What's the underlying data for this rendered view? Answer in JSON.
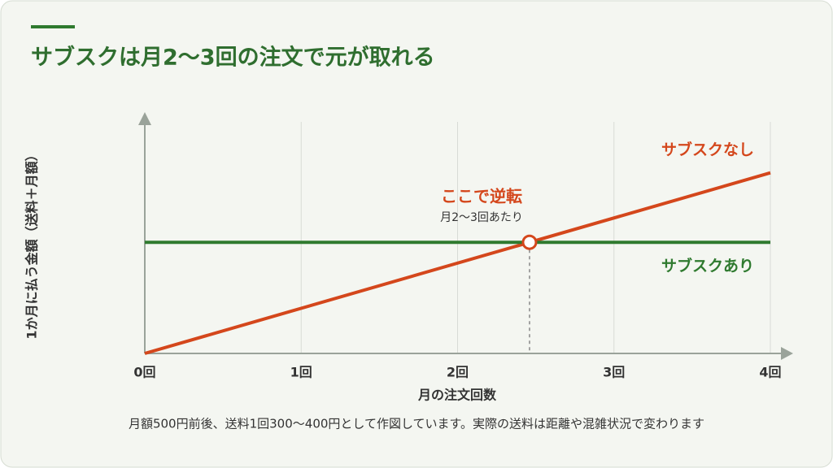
{
  "chart_data": {
    "type": "line",
    "title": "サブスクは月2〜3回の注文で元が取れる",
    "xlabel": "月の注文回数",
    "ylabel": "1か月に払う金額（送料＋月額）",
    "x": [
      0,
      4
    ],
    "xlim": [
      0,
      4
    ],
    "xticks": [
      {
        "value": 0,
        "label": "0回"
      },
      {
        "value": 1,
        "label": "1回"
      },
      {
        "value": 2,
        "label": "2回"
      },
      {
        "value": 3,
        "label": "3回"
      },
      {
        "value": 4,
        "label": "4回"
      }
    ],
    "ylim": [
      0,
      100
    ],
    "grid": true,
    "series": [
      {
        "name": "サブスクなし",
        "color": "#d4471c",
        "values": [
          0,
          78
        ]
      },
      {
        "name": "サブスクあり",
        "color": "#2f7a2f",
        "values": [
          48,
          48
        ]
      }
    ],
    "crossover": {
      "x": 2.46,
      "y": 48,
      "label": "ここで逆転",
      "sublabel": "月2〜3回あたり"
    },
    "note": "月額500円前後、送料1回300〜400円として作図しています。実際の送料は距離や混雑状況で変わります"
  }
}
